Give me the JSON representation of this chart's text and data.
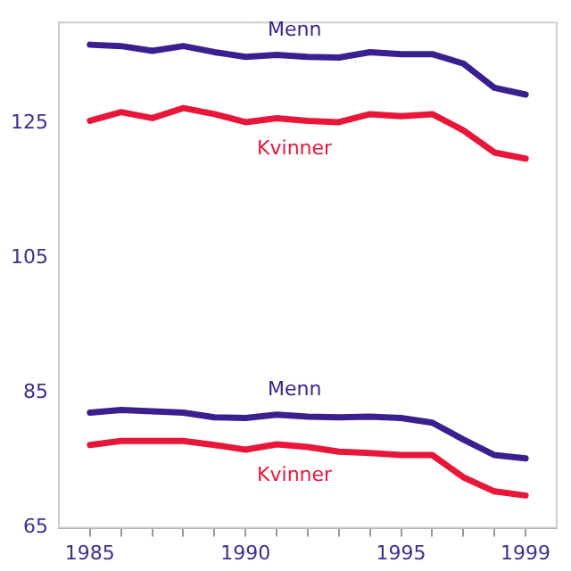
{
  "chart_data": {
    "type": "line",
    "x": [
      1985,
      1986,
      1987,
      1988,
      1989,
      1990,
      1991,
      1992,
      1993,
      1994,
      1995,
      1996,
      1997,
      1998,
      1999
    ],
    "series": [
      {
        "name": "Menn",
        "color": "#3b1f8f",
        "values": [
          136.7,
          136.5,
          135.8,
          136.5,
          135.6,
          134.9,
          135.2,
          134.9,
          134.8,
          135.6,
          135.3,
          135.3,
          133.9,
          130.3,
          129.3
        ]
      },
      {
        "name": "Kvinner",
        "color": "#e8173a",
        "values": [
          125.4,
          126.7,
          125.8,
          127.3,
          126.4,
          125.2,
          125.8,
          125.4,
          125.2,
          126.4,
          126.1,
          126.4,
          124.0,
          120.7,
          119.8
        ]
      },
      {
        "name": "Menn",
        "color": "#3b1f8f",
        "values": [
          82.1,
          82.5,
          82.3,
          82.1,
          81.4,
          81.3,
          81.8,
          81.5,
          81.4,
          81.5,
          81.3,
          80.6,
          78.1,
          75.8,
          75.3
        ]
      },
      {
        "name": "Kvinner",
        "color": "#e8173a",
        "values": [
          77.3,
          77.9,
          77.9,
          77.9,
          77.3,
          76.6,
          77.4,
          77.0,
          76.3,
          76.1,
          75.8,
          75.8,
          72.5,
          70.4,
          69.8
        ]
      }
    ],
    "xlim": [
      1984,
      2000
    ],
    "xticks": [
      1985,
      {
        "value": 1986,
        "label": null
      },
      {
        "value": 1987,
        "label": null
      },
      {
        "value": 1988,
        "label": null
      },
      {
        "value": 1989,
        "label": null
      },
      1990,
      {
        "value": 1991,
        "label": null
      },
      {
        "value": 1992,
        "label": null
      },
      {
        "value": 1993,
        "label": null
      },
      {
        "value": 1994,
        "label": null
      },
      1995,
      {
        "value": 1996,
        "label": null
      },
      {
        "value": 1997,
        "label": null
      },
      {
        "value": 1998,
        "label": null
      },
      1999
    ],
    "ylim": [
      65,
      140
    ],
    "yticks": [
      65,
      85,
      105,
      125
    ],
    "grid": false,
    "legend": false,
    "marker": "none",
    "line_style": "solid"
  }
}
